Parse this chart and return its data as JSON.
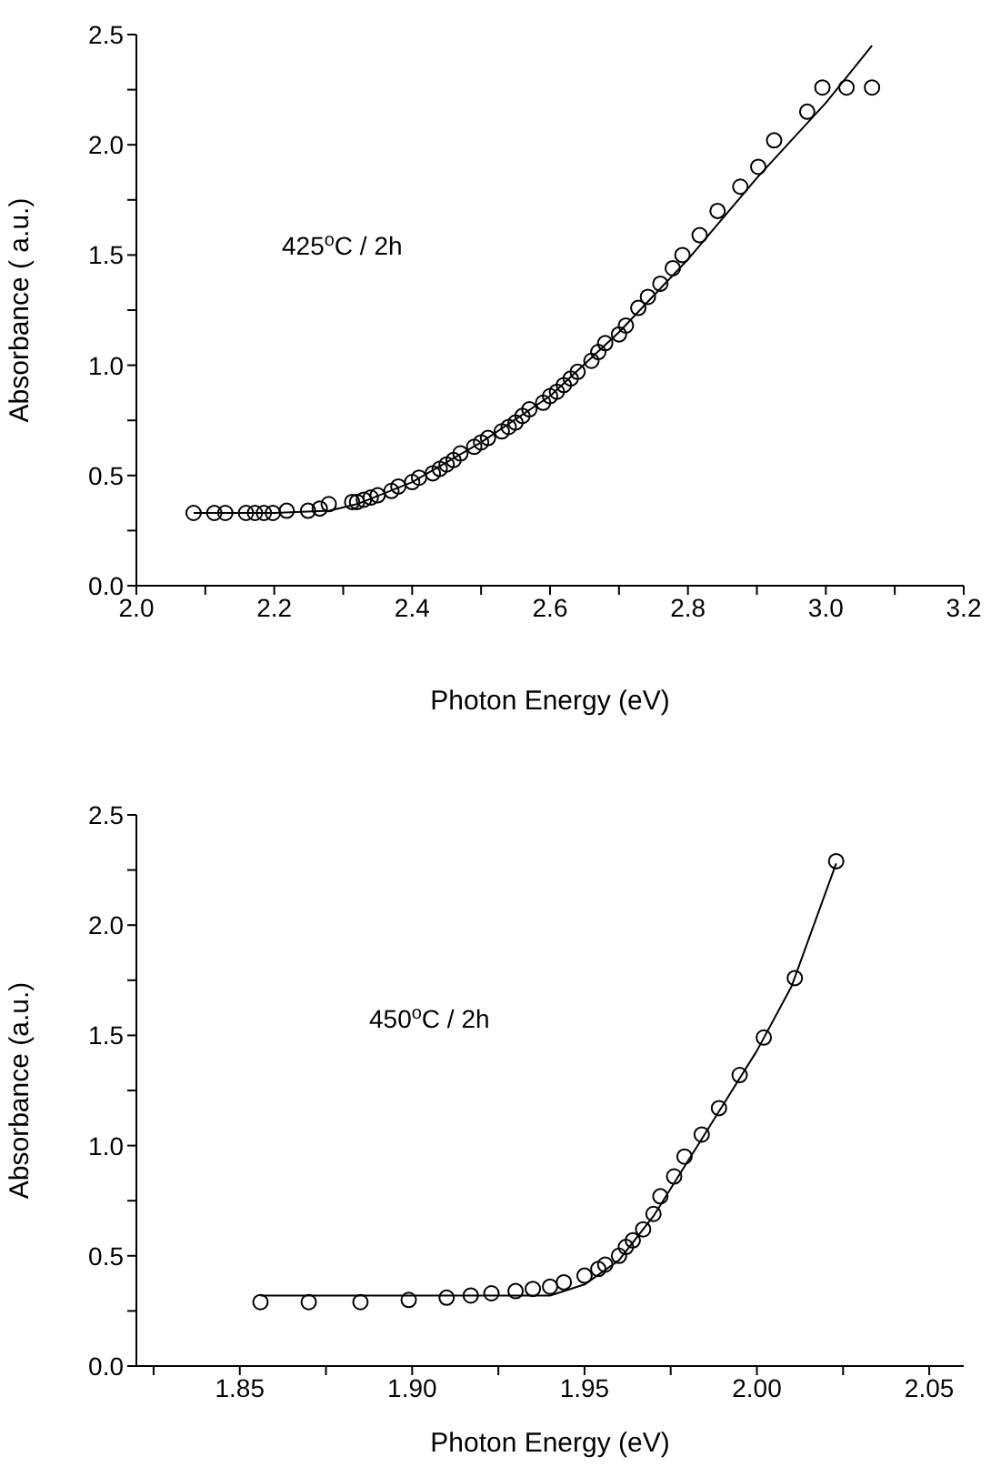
{
  "chart_data": [
    {
      "type": "scatter",
      "xlabel": "Photon Energy (eV)",
      "ylabel": "Absorbance ( a.u.)",
      "annotations": [
        "425$^{o}$C / 2h"
      ],
      "marker": "circle",
      "grid": false,
      "legend": false,
      "xlim": [
        2.0,
        3.2
      ],
      "xticks": [
        {
          "value": 2.0,
          "label": "2.0"
        },
        {
          "value": 2.1,
          "label": null
        },
        {
          "value": 2.2,
          "label": "2.2"
        },
        {
          "value": 2.3,
          "label": null
        },
        {
          "value": 2.4,
          "label": "2.4"
        },
        {
          "value": 2.5,
          "label": null
        },
        {
          "value": 2.6,
          "label": "2.6"
        },
        {
          "value": 2.7,
          "label": null
        },
        {
          "value": 2.8,
          "label": "2.8"
        },
        {
          "value": 2.9,
          "label": null
        },
        {
          "value": 3.0,
          "label": "3.0"
        },
        {
          "value": 3.1,
          "label": null
        },
        {
          "value": 3.2,
          "label": "3.2"
        }
      ],
      "ylim": [
        0,
        2.5
      ],
      "yticks": [
        {
          "value": 0,
          "label": "0.0"
        },
        {
          "value": 0.25,
          "label": null
        },
        {
          "value": 0.5,
          "label": "0.5"
        },
        {
          "value": 0.75,
          "label": null
        },
        {
          "value": 1.0,
          "label": "1.0"
        },
        {
          "value": 1.25,
          "label": null
        },
        {
          "value": 1.5,
          "label": "1.5"
        },
        {
          "value": 1.75,
          "label": null
        },
        {
          "value": 2.0,
          "label": "2.0"
        },
        {
          "value": 2.25,
          "label": null
        },
        {
          "value": 2.5,
          "label": "2.5"
        }
      ],
      "series": [
        {
          "type": "scatter",
          "color": "#000000",
          "x": [
            2.083,
            2.113,
            2.129,
            2.159,
            2.172,
            2.185,
            2.198,
            2.218,
            2.249,
            2.266,
            2.279,
            2.313,
            2.32,
            2.33,
            2.34,
            2.35,
            2.37,
            2.38,
            2.4,
            2.41,
            2.43,
            2.44,
            2.45,
            2.46,
            2.47,
            2.49,
            2.5,
            2.51,
            2.53,
            2.54,
            2.55,
            2.56,
            2.57,
            2.59,
            2.6,
            2.61,
            2.62,
            2.63,
            2.64,
            2.66,
            2.67,
            2.68,
            2.7,
            2.71,
            2.728,
            2.742,
            2.76,
            2.778,
            2.792,
            2.817,
            2.843,
            2.876,
            2.902,
            2.925,
            2.973,
            2.995,
            3.03,
            3.067
          ],
          "values": [
            0.33,
            0.33,
            0.33,
            0.33,
            0.33,
            0.33,
            0.33,
            0.34,
            0.34,
            0.35,
            0.37,
            0.38,
            0.38,
            0.39,
            0.4,
            0.41,
            0.43,
            0.45,
            0.47,
            0.49,
            0.51,
            0.53,
            0.55,
            0.57,
            0.6,
            0.63,
            0.65,
            0.67,
            0.7,
            0.72,
            0.74,
            0.77,
            0.8,
            0.83,
            0.86,
            0.88,
            0.91,
            0.94,
            0.97,
            1.02,
            1.06,
            1.1,
            1.14,
            1.18,
            1.26,
            1.31,
            1.37,
            1.44,
            1.5,
            1.59,
            1.7,
            1.81,
            1.9,
            2.02,
            2.15,
            2.26,
            2.26,
            2.26
          ]
        },
        {
          "type": "line",
          "color": "#000000",
          "marker": "none",
          "x": [
            2.083,
            2.2,
            2.28,
            2.32,
            2.4,
            2.5,
            2.6,
            2.7,
            2.8,
            2.9,
            3.0,
            3.067
          ],
          "values": [
            0.33,
            0.33,
            0.34,
            0.37,
            0.47,
            0.65,
            0.86,
            1.15,
            1.48,
            1.85,
            2.19,
            2.45
          ]
        }
      ]
    },
    {
      "type": "scatter",
      "xlabel": "Photon Energy (eV)",
      "ylabel": "Absorbance (a.u.)",
      "annotations": [
        "450$^{o}$C / 2h"
      ],
      "marker": "circle",
      "grid": false,
      "legend": false,
      "xlim": [
        1.82,
        2.06
      ],
      "xticks": [
        {
          "value": 1.825,
          "label": null
        },
        {
          "value": 1.85,
          "label": "1.85"
        },
        {
          "value": 1.875,
          "label": null
        },
        {
          "value": 1.9,
          "label": "1.90"
        },
        {
          "value": 1.925,
          "label": null
        },
        {
          "value": 1.95,
          "label": "1.95"
        },
        {
          "value": 1.975,
          "label": null
        },
        {
          "value": 2.0,
          "label": "2.00"
        },
        {
          "value": 2.025,
          "label": null
        },
        {
          "value": 2.05,
          "label": "2.05"
        }
      ],
      "ylim": [
        0,
        2.5
      ],
      "yticks": [
        {
          "value": 0,
          "label": "0.0"
        },
        {
          "value": 0.25,
          "label": null
        },
        {
          "value": 0.5,
          "label": "0.5"
        },
        {
          "value": 0.75,
          "label": null
        },
        {
          "value": 1.0,
          "label": "1.0"
        },
        {
          "value": 1.25,
          "label": null
        },
        {
          "value": 1.5,
          "label": "1.5"
        },
        {
          "value": 1.75,
          "label": null
        },
        {
          "value": 2.0,
          "label": "2.0"
        },
        {
          "value": 2.25,
          "label": null
        },
        {
          "value": 2.5,
          "label": "2.5"
        }
      ],
      "series": [
        {
          "type": "scatter",
          "color": "#000000",
          "x": [
            1.856,
            1.87,
            1.885,
            1.899,
            1.91,
            1.917,
            1.923,
            1.93,
            1.935,
            1.94,
            1.944,
            1.95,
            1.954,
            1.956,
            1.96,
            1.962,
            1.964,
            1.967,
            1.97,
            1.972,
            1.976,
            1.979,
            1.984,
            1.989,
            1.995,
            2.002,
            2.011,
            2.023
          ],
          "values": [
            0.29,
            0.29,
            0.29,
            0.3,
            0.31,
            0.32,
            0.33,
            0.34,
            0.35,
            0.36,
            0.38,
            0.41,
            0.44,
            0.46,
            0.5,
            0.54,
            0.57,
            0.62,
            0.69,
            0.77,
            0.86,
            0.95,
            1.05,
            1.17,
            1.32,
            1.49,
            1.76,
            2.29
          ]
        },
        {
          "type": "line",
          "color": "#000000",
          "marker": "none",
          "x": [
            1.856,
            1.94,
            1.95,
            1.96,
            1.97,
            1.98,
            1.99,
            2.0,
            2.01,
            2.023
          ],
          "values": [
            0.32,
            0.32,
            0.37,
            0.48,
            0.68,
            0.93,
            1.18,
            1.43,
            1.72,
            2.28
          ]
        }
      ]
    }
  ]
}
